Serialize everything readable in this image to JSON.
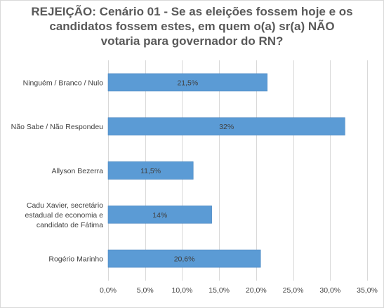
{
  "chart_data": {
    "type": "bar",
    "orientation": "horizontal",
    "title_lines": [
      "REJEIÇÃO: Cenário 01 - Se as eleições fossem hoje e os",
      "candidatos fossem estes, em quem o(a) sr(a) NÃO",
      "votaria para governador do RN?"
    ],
    "categories": [
      [
        "Ninguém / Branco / Nulo"
      ],
      [
        "Não Sabe / Não Respondeu"
      ],
      [
        "Allyson Bezerra"
      ],
      [
        "Cadu Xavier, secretário",
        "estadual de economia e",
        "candidato de Fátima"
      ],
      [
        "Rogério Marinho"
      ]
    ],
    "values": [
      21.5,
      32,
      11.5,
      14,
      20.6
    ],
    "data_labels": [
      "21,5%",
      "32%",
      "11,5%",
      "14%",
      "20,6%"
    ],
    "xlim": [
      0,
      35
    ],
    "xticks": [
      0,
      5,
      10,
      15,
      20,
      25,
      30,
      35
    ],
    "xtick_labels": [
      "0,0%",
      "5,0%",
      "10,0%",
      "15,0%",
      "20,0%",
      "25,0%",
      "30,0%",
      "35,0%"
    ],
    "grid": true,
    "legend": false,
    "colors": {
      "bar": "#5b9bd5",
      "bar_border": "#4a86c0",
      "grid": "#d9d9d9",
      "text": "#404040",
      "title": "#595959"
    }
  }
}
